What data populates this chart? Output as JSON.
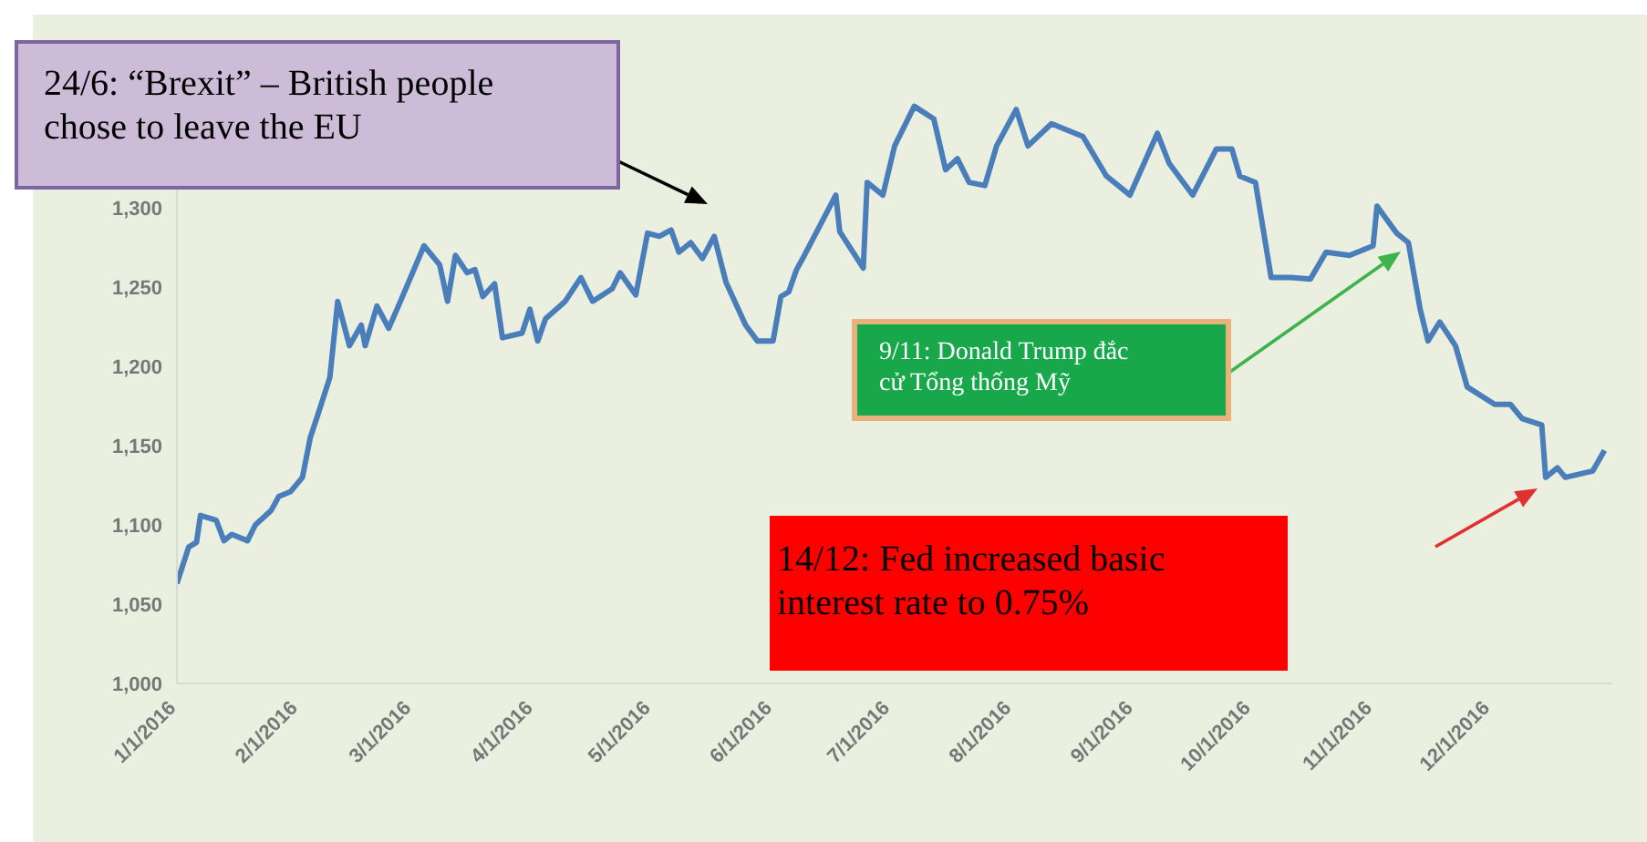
{
  "chart_data": {
    "type": "line",
    "x": [
      "2016-01-01",
      "2016-01-04",
      "2016-01-06",
      "2016-01-07",
      "2016-01-11",
      "2016-01-13",
      "2016-01-15",
      "2016-01-19",
      "2016-01-21",
      "2016-01-25",
      "2016-01-27",
      "2016-01-30",
      "2016-02-02",
      "2016-02-04",
      "2016-02-06",
      "2016-02-09",
      "2016-02-11",
      "2016-02-14",
      "2016-02-17",
      "2016-02-18",
      "2016-02-21",
      "2016-02-24",
      "2016-02-27",
      "2016-03-04",
      "2016-03-08",
      "2016-03-10",
      "2016-03-12",
      "2016-03-15",
      "2016-03-17",
      "2016-03-19",
      "2016-03-22",
      "2016-03-24",
      "2016-03-29",
      "2016-03-31",
      "2016-04-02",
      "2016-04-04",
      "2016-04-09",
      "2016-04-13",
      "2016-04-16",
      "2016-04-21",
      "2016-04-23",
      "2016-04-27",
      "2016-04-30",
      "2016-05-03",
      "2016-05-06",
      "2016-05-08",
      "2016-05-11",
      "2016-05-14",
      "2016-05-17",
      "2016-05-20",
      "2016-05-25",
      "2016-05-28",
      "2016-06-01",
      "2016-06-03",
      "2016-06-05",
      "2016-06-07",
      "2016-06-09",
      "2016-06-17",
      "2016-06-18",
      "2016-06-24",
      "2016-06-25",
      "2016-06-29",
      "2016-07-02",
      "2016-07-07",
      "2016-07-12",
      "2016-07-15",
      "2016-07-18",
      "2016-07-21",
      "2016-07-25",
      "2016-07-28",
      "2016-08-02",
      "2016-08-05",
      "2016-08-11",
      "2016-08-19",
      "2016-08-25",
      "2016-08-31",
      "2016-09-07",
      "2016-09-10",
      "2016-09-16",
      "2016-09-22",
      "2016-09-26",
      "2016-09-28",
      "2016-10-02",
      "2016-10-06",
      "2016-10-11",
      "2016-10-16",
      "2016-10-20",
      "2016-10-26",
      "2016-11-01",
      "2016-11-02",
      "2016-11-07",
      "2016-11-10",
      "2016-11-13",
      "2016-11-15",
      "2016-11-18",
      "2016-11-22",
      "2016-11-25",
      "2016-12-02",
      "2016-12-06",
      "2016-12-09",
      "2016-12-14",
      "2016-12-15",
      "2016-12-18",
      "2016-12-20",
      "2016-12-27",
      "2016-12-30"
    ],
    "values": [
      1063,
      1086,
      1089,
      1106,
      1103,
      1090,
      1094,
      1090,
      1100,
      1109,
      1118,
      1121,
      1130,
      1155,
      1170,
      1193,
      1241,
      1213,
      1226,
      1213,
      1238,
      1224,
      1241,
      1276,
      1264,
      1241,
      1270,
      1259,
      1261,
      1244,
      1252,
      1218,
      1221,
      1236,
      1216,
      1230,
      1241,
      1256,
      1241,
      1249,
      1259,
      1245,
      1284,
      1282,
      1286,
      1272,
      1278,
      1268,
      1282,
      1253,
      1226,
      1216,
      1216,
      1244,
      1247,
      1261,
      1270,
      1308,
      1285,
      1262,
      1316,
      1308,
      1339,
      1364,
      1356,
      1324,
      1331,
      1316,
      1314,
      1339,
      1362,
      1339,
      1353,
      1345,
      1320,
      1308,
      1347,
      1328,
      1308,
      1337,
      1337,
      1320,
      1316,
      1256,
      1256,
      1255,
      1272,
      1270,
      1276,
      1301,
      1284,
      1278,
      1236,
      1216,
      1228,
      1213,
      1187,
      1176,
      1176,
      1167,
      1163,
      1130,
      1136,
      1130,
      1134,
      1147
    ],
    "color": "#4a7ebb",
    "xlim": [
      "2016-01-01",
      "2017-01-01"
    ],
    "xticks": [
      {
        "value": "2016-01-01",
        "label": "1/1/2016"
      },
      {
        "value": "2016-02-01",
        "label": "2/1/2016"
      },
      {
        "value": "2016-03-01",
        "label": "3/1/2016"
      },
      {
        "value": "2016-04-01",
        "label": "4/1/2016"
      },
      {
        "value": "2016-05-01",
        "label": "5/1/2016"
      },
      {
        "value": "2016-06-01",
        "label": "6/1/2016"
      },
      {
        "value": "2016-07-01",
        "label": "7/1/2016"
      },
      {
        "value": "2016-08-01",
        "label": "8/1/2016"
      },
      {
        "value": "2016-09-01",
        "label": "9/1/2016"
      },
      {
        "value": "2016-10-01",
        "label": "10/1/2016"
      },
      {
        "value": "2016-11-01",
        "label": "11/1/2016"
      },
      {
        "value": "2016-12-01",
        "label": "12/1/2016"
      }
    ],
    "ylim": [
      1000,
      1400
    ],
    "yticks": [
      {
        "value": 1000,
        "label": "1,000"
      },
      {
        "value": 1050,
        "label": "1,050"
      },
      {
        "value": 1100,
        "label": "1,100"
      },
      {
        "value": 1150,
        "label": "1,150"
      },
      {
        "value": 1200,
        "label": "1,200"
      },
      {
        "value": 1250,
        "label": "1,250"
      },
      {
        "value": 1300,
        "label": "1,300"
      }
    ],
    "grid": false,
    "legend": false,
    "marker": "none",
    "line_style": "solid",
    "annotations": [
      "24/6: “Brexit” – British people chose to leave the EU",
      "9/11: Donald Trump đắc cử Tổng thống Mỹ",
      "14/12: Fed increased basic interest rate to 0.75%"
    ]
  }
}
